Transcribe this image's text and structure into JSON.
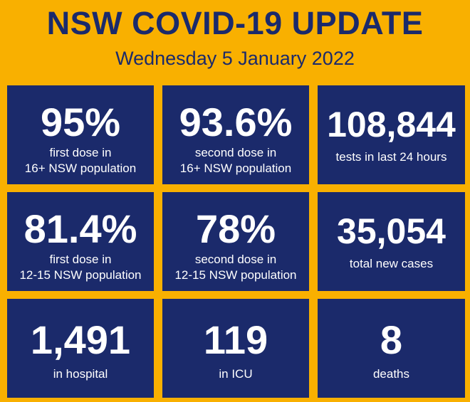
{
  "header": {
    "title": "NSW COVID-19 UPDATE",
    "date": "Wednesday 5 January 2022"
  },
  "colors": {
    "background": "#F9B000",
    "tile": "#1B2A6B",
    "title_text": "#1B2A6B",
    "tile_text": "#FFFFFF"
  },
  "stats": [
    {
      "value": "95%",
      "label_line1": "first dose in",
      "label_line2": "16+ NSW population"
    },
    {
      "value": "93.6%",
      "label_line1": "second dose in",
      "label_line2": "16+ NSW population"
    },
    {
      "value": "108,844",
      "label_line1": "tests in last 24 hours",
      "label_line2": ""
    },
    {
      "value": "81.4%",
      "label_line1": "first dose in",
      "label_line2": "12-15 NSW population"
    },
    {
      "value": "78%",
      "label_line1": "second dose in",
      "label_line2": "12-15 NSW population"
    },
    {
      "value": "35,054",
      "label_line1": "total new cases",
      "label_line2": ""
    },
    {
      "value": "1,491",
      "label_line1": "in hospital",
      "label_line2": ""
    },
    {
      "value": "119",
      "label_line1": "in ICU",
      "label_line2": ""
    },
    {
      "value": "8",
      "label_line1": "deaths",
      "label_line2": ""
    }
  ]
}
